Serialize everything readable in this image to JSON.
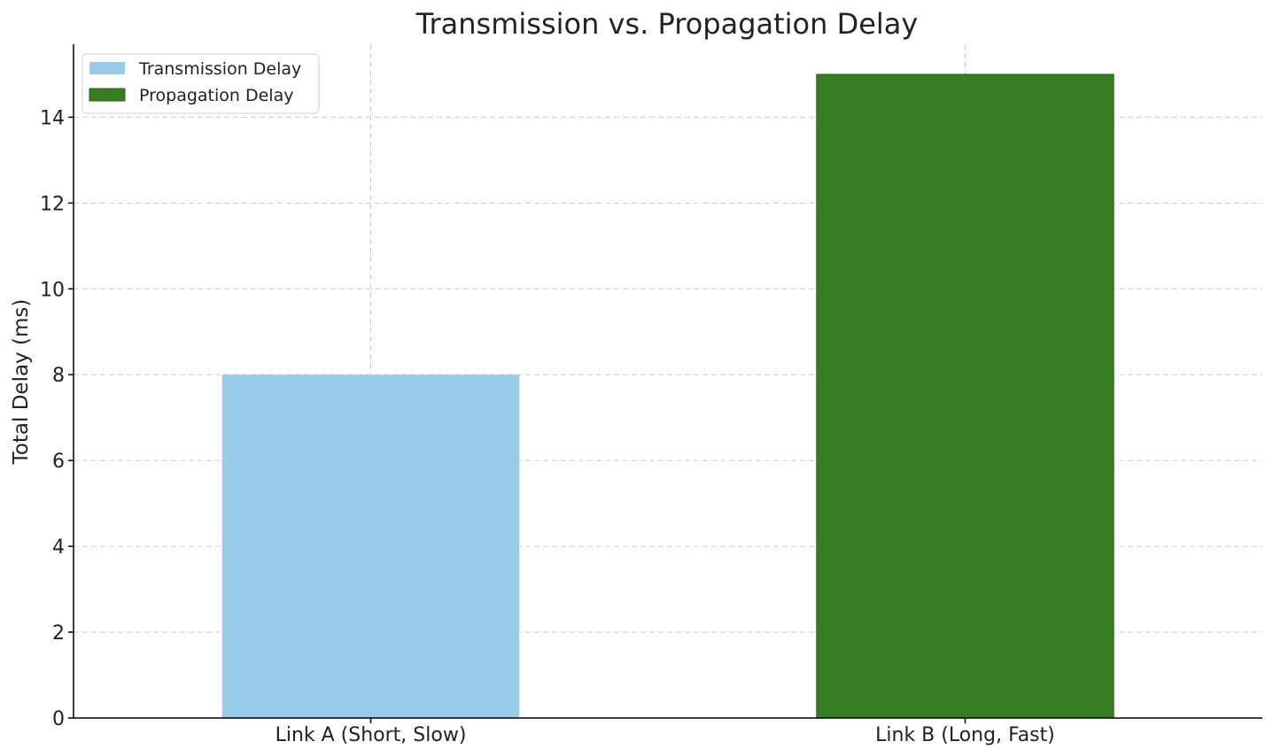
{
  "chart_data": {
    "type": "bar",
    "title": "Transmission vs. Propagation Delay",
    "xlabel": "",
    "ylabel": "Total Delay (ms)",
    "categories": [
      "Link A (Short, Slow)",
      "Link B (Long, Fast)"
    ],
    "series": [
      {
        "name": "Transmission Delay",
        "values": [
          8,
          null
        ],
        "color": "#97cbe8"
      },
      {
        "name": "Propagation Delay",
        "values": [
          null,
          15
        ],
        "color": "#377d22"
      }
    ],
    "ylim": [
      0,
      15.7
    ],
    "yticks": [
      0,
      2,
      4,
      6,
      8,
      10,
      12,
      14
    ],
    "grid": true,
    "legend_position": "top-left"
  }
}
